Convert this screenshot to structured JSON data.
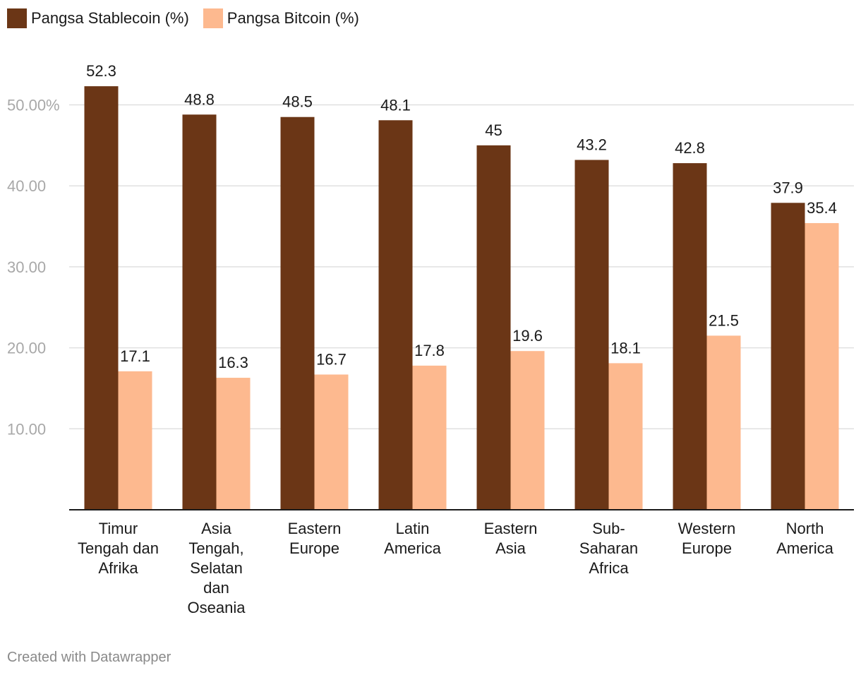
{
  "legend": {
    "series1_label": "Pangsa Stablecoin (%)",
    "series2_label": "Pangsa Bitcoin (%)"
  },
  "colors": {
    "stablecoin": "#6b3616",
    "bitcoin": "#fdb98f",
    "grid": "#e0e0e0",
    "axis": "#1a1a1a",
    "tick": "#a8a8a8",
    "value_label": "#1a1a1a"
  },
  "footer": "Created with Datawrapper",
  "chart_data": {
    "type": "bar",
    "categories": [
      [
        "Timur",
        "Tengah dan",
        "Afrika"
      ],
      [
        "Asia",
        "Tengah,",
        "Selatan",
        "dan",
        "Oseania"
      ],
      [
        "Eastern",
        "Europe"
      ],
      [
        "Latin",
        "America"
      ],
      [
        "Eastern",
        "Asia"
      ],
      [
        "Sub-",
        "Saharan",
        "Africa"
      ],
      [
        "Western",
        "Europe"
      ],
      [
        "North",
        "America"
      ]
    ],
    "series": [
      {
        "name": "Pangsa Stablecoin (%)",
        "values": [
          52.3,
          48.8,
          48.5,
          48.1,
          45,
          43.2,
          42.8,
          37.9
        ]
      },
      {
        "name": "Pangsa Bitcoin (%)",
        "values": [
          17.1,
          16.3,
          16.7,
          17.8,
          19.6,
          18.1,
          21.5,
          35.4
        ]
      }
    ],
    "value_labels": [
      [
        "52.3",
        "48.8",
        "48.5",
        "48.1",
        "45",
        "43.2",
        "42.8",
        "37.9"
      ],
      [
        "17.1",
        "16.3",
        "16.7",
        "17.8",
        "19.6",
        "18.1",
        "21.5",
        "35.4"
      ]
    ],
    "yticks": [
      {
        "value": 10,
        "label": "10.00"
      },
      {
        "value": 20,
        "label": "20.00"
      },
      {
        "value": 30,
        "label": "30.00"
      },
      {
        "value": 40,
        "label": "40.00"
      },
      {
        "value": 50,
        "label": "50.00%"
      }
    ],
    "ylim": [
      0,
      60
    ],
    "grid": true,
    "legend_position": "top-left"
  }
}
